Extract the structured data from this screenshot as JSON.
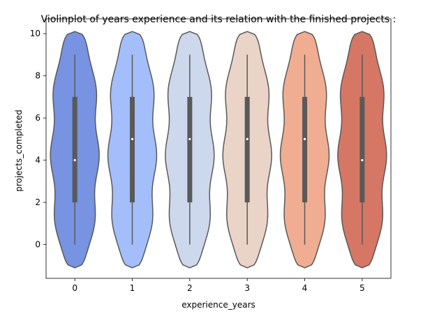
{
  "chart_data": {
    "type": "violin",
    "title": "Violinplot of years experience and its relation with the finished projects :",
    "xlabel": "experience_years",
    "ylabel": "projects_completed",
    "categories": [
      "0",
      "1",
      "2",
      "3",
      "4",
      "5"
    ],
    "ylim": [
      -1.6,
      10.7
    ],
    "yticks": [
      0,
      2,
      4,
      6,
      8,
      10
    ],
    "grid": false,
    "series": [
      {
        "category": "0",
        "color": "#7793e1",
        "min": 0,
        "q1": 2,
        "median": 4,
        "q3": 7,
        "max": 9,
        "kde_min": -1.1,
        "kde_max": 10.1
      },
      {
        "category": "1",
        "color": "#a3befa",
        "min": 0,
        "q1": 2,
        "median": 5,
        "q3": 7,
        "max": 9,
        "kde_min": -1.1,
        "kde_max": 10.1
      },
      {
        "category": "2",
        "color": "#cdd8ed",
        "min": 0,
        "q1": 2,
        "median": 5,
        "q3": 7,
        "max": 9,
        "kde_min": -1.1,
        "kde_max": 10.1
      },
      {
        "category": "3",
        "color": "#ead3c7",
        "min": 0,
        "q1": 2,
        "median": 5,
        "q3": 7,
        "max": 9,
        "kde_min": -1.1,
        "kde_max": 10.1
      },
      {
        "category": "4",
        "color": "#f0ad91",
        "min": 0,
        "q1": 2,
        "median": 5,
        "q3": 7,
        "max": 9,
        "kde_min": -1.1,
        "kde_max": 10.1
      },
      {
        "category": "5",
        "color": "#d57764",
        "min": 0,
        "q1": 2,
        "median": 4,
        "q3": 7,
        "max": 9,
        "kde_min": -1.1,
        "kde_max": 10.1
      }
    ]
  }
}
